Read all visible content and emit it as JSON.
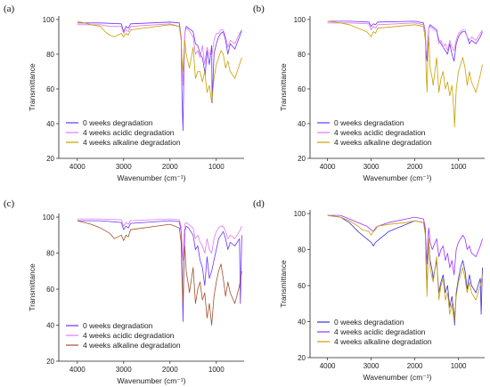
{
  "chart_data": [
    {
      "type": "line",
      "panel_label": "(a)",
      "xlabel": "Wavenumber (cm⁻¹)",
      "ylabel": "Transmittance",
      "xlim": [
        4400,
        400
      ],
      "ylim": [
        20,
        102
      ],
      "xticks": [
        4000,
        3000,
        2000,
        1000
      ],
      "yticks": [
        20,
        40,
        60,
        80,
        100
      ],
      "legend_position": "bottom-left",
      "series": [
        {
          "name": "0 weeks degradation",
          "color": "#6b33ff",
          "x": [
            4000,
            3500,
            3050,
            3000,
            2950,
            2900,
            2850,
            2000,
            1800,
            1760,
            1740,
            1720,
            1700,
            1680,
            1650,
            1600,
            1500,
            1450,
            1400,
            1350,
            1300,
            1250,
            1240,
            1200,
            1150,
            1100,
            1090,
            1050,
            1000,
            950,
            900,
            850,
            800,
            750,
            700,
            600,
            500,
            450
          ],
          "y": [
            98,
            98,
            97.5,
            93,
            96,
            95,
            97.5,
            98.5,
            98,
            90,
            55,
            36,
            70,
            92,
            96,
            95,
            93,
            86,
            85,
            80,
            78,
            70,
            68,
            82,
            74,
            85,
            52,
            80,
            86,
            90,
            92,
            93,
            88,
            80,
            86,
            83,
            90,
            94
          ]
        },
        {
          "name": "4 weeks acidic degradation",
          "color": "#e27ae8",
          "x": [
            4000,
            3500,
            3300,
            3050,
            3000,
            2950,
            2900,
            2850,
            2000,
            1800,
            1760,
            1740,
            1720,
            1700,
            1680,
            1650,
            1600,
            1500,
            1450,
            1400,
            1350,
            1300,
            1250,
            1200,
            1150,
            1100,
            1050,
            1000,
            950,
            900,
            850,
            800,
            750,
            700,
            600,
            500,
            450
          ],
          "y": [
            97,
            97,
            96,
            96,
            92,
            94,
            93,
            96,
            97.5,
            96,
            88,
            76,
            62,
            78,
            92,
            95,
            94,
            90,
            80,
            82,
            78,
            85,
            74,
            84,
            80,
            78,
            88,
            92,
            92,
            94,
            94,
            90,
            84,
            88,
            86,
            92,
            94
          ]
        },
        {
          "name": "4 weeks alkaline degradation",
          "color": "#c8a000",
          "x": [
            4000,
            3700,
            3500,
            3400,
            3300,
            3200,
            3050,
            3000,
            2950,
            2900,
            2850,
            2000,
            1800,
            1760,
            1740,
            1720,
            1700,
            1680,
            1650,
            1600,
            1580,
            1500,
            1450,
            1400,
            1350,
            1300,
            1250,
            1200,
            1150,
            1100,
            1050,
            1000,
            950,
            900,
            850,
            800,
            750,
            700,
            600,
            500,
            450
          ],
          "y": [
            99,
            97,
            96,
            93,
            91,
            90,
            92,
            90,
            92,
            91,
            94,
            97,
            96,
            90,
            76,
            70,
            80,
            88,
            80,
            74,
            72,
            84,
            66,
            70,
            70,
            64,
            70,
            58,
            62,
            52,
            66,
            74,
            78,
            82,
            80,
            72,
            76,
            70,
            66,
            74,
            78
          ]
        }
      ]
    },
    {
      "type": "line",
      "panel_label": "(b)",
      "xlabel": "Wavenumber (cm⁻¹)",
      "ylabel": "Transmittance",
      "xlim": [
        4400,
        400
      ],
      "ylim": [
        20,
        102
      ],
      "xticks": [
        4000,
        3000,
        2000,
        1000
      ],
      "yticks": [
        20,
        40,
        60,
        80,
        100
      ],
      "legend_position": "bottom-left",
      "series": [
        {
          "name": "0 weeks degradation",
          "color": "#6b33ff",
          "x": [
            4000,
            3500,
            3050,
            3000,
            2950,
            2900,
            2850,
            2000,
            1800,
            1760,
            1740,
            1720,
            1700,
            1680,
            1650,
            1600,
            1500,
            1450,
            1400,
            1350,
            1300,
            1250,
            1200,
            1150,
            1100,
            1050,
            1000,
            950,
            900,
            850,
            800,
            750,
            700,
            600,
            500,
            450
          ],
          "y": [
            99,
            99,
            98.5,
            96,
            97.5,
            97,
            98.5,
            99,
            98,
            93,
            80,
            76,
            88,
            95,
            97,
            96,
            94,
            88,
            86,
            84,
            82,
            80,
            86,
            80,
            76,
            86,
            90,
            92,
            93,
            93,
            90,
            86,
            88,
            86,
            90,
            93
          ]
        },
        {
          "name": "4 weeks acidic degradation",
          "color": "#e27ae8",
          "x": [
            4000,
            3500,
            3050,
            3000,
            2950,
            2900,
            2850,
            2000,
            1800,
            1760,
            1740,
            1720,
            1700,
            1680,
            1650,
            1600,
            1500,
            1450,
            1400,
            1350,
            1300,
            1250,
            1200,
            1150,
            1100,
            1050,
            1000,
            950,
            900,
            850,
            800,
            750,
            700,
            600,
            500,
            450
          ],
          "y": [
            98,
            98,
            97.5,
            94,
            96,
            95,
            97,
            98,
            97,
            92,
            82,
            80,
            90,
            95,
            96,
            95,
            93,
            86,
            88,
            84,
            86,
            82,
            88,
            84,
            82,
            88,
            92,
            93,
            94,
            94,
            90,
            88,
            90,
            88,
            92,
            94
          ]
        },
        {
          "name": "4 weeks alkaline degradation",
          "color": "#c8a000",
          "x": [
            4000,
            3700,
            3500,
            3300,
            3100,
            3000,
            2950,
            2900,
            2850,
            2000,
            1800,
            1760,
            1740,
            1720,
            1700,
            1680,
            1650,
            1600,
            1580,
            1500,
            1450,
            1400,
            1350,
            1300,
            1250,
            1200,
            1150,
            1100,
            1090,
            1050,
            1000,
            950,
            900,
            850,
            800,
            750,
            700,
            600,
            500,
            450
          ],
          "y": [
            99,
            98,
            97,
            95,
            93,
            90,
            93,
            92,
            95,
            97,
            96,
            88,
            70,
            58,
            80,
            90,
            72,
            66,
            62,
            78,
            58,
            66,
            70,
            60,
            64,
            56,
            62,
            46,
            38,
            60,
            70,
            74,
            78,
            72,
            62,
            70,
            64,
            58,
            68,
            74
          ]
        }
      ]
    },
    {
      "type": "line",
      "panel_label": "(c)",
      "xlabel": "Wavenumber (cm⁻¹)",
      "ylabel": "Transmittance",
      "xlim": [
        4400,
        400
      ],
      "ylim": [
        20,
        102
      ],
      "xticks": [
        4000,
        3000,
        2000,
        1000
      ],
      "yticks": [
        20,
        40,
        60,
        80,
        100
      ],
      "legend_position": "bottom-left",
      "series": [
        {
          "name": "0 weeks degradation",
          "color": "#6b33ff",
          "x": [
            4000,
            3500,
            3050,
            3000,
            2950,
            2900,
            2850,
            2000,
            1800,
            1760,
            1740,
            1720,
            1700,
            1680,
            1650,
            1600,
            1500,
            1450,
            1400,
            1350,
            1300,
            1250,
            1200,
            1150,
            1100,
            1050,
            1000,
            950,
            900,
            850,
            800,
            750,
            700,
            600,
            500,
            480,
            450
          ],
          "y": [
            98,
            98,
            97,
            93,
            95,
            94,
            96.5,
            98,
            97.5,
            92,
            74,
            42,
            72,
            92,
            95,
            94,
            90,
            82,
            84,
            76,
            72,
            62,
            78,
            66,
            70,
            76,
            82,
            88,
            90,
            92,
            88,
            82,
            86,
            84,
            88,
            52,
            90
          ]
        },
        {
          "name": "4 weeks acidic degradation",
          "color": "#e27ae8",
          "x": [
            4000,
            3500,
            3050,
            3000,
            2950,
            2900,
            2850,
            2000,
            1800,
            1760,
            1740,
            1720,
            1700,
            1680,
            1650,
            1600,
            1500,
            1450,
            1400,
            1350,
            1300,
            1250,
            1200,
            1150,
            1100,
            1050,
            1000,
            950,
            900,
            850,
            800,
            750,
            700,
            600,
            500,
            450
          ],
          "y": [
            99,
            99,
            98.5,
            95,
            97,
            96,
            98,
            99,
            98.5,
            95,
            86,
            76,
            88,
            96,
            97,
            96,
            94,
            88,
            90,
            86,
            84,
            80,
            88,
            82,
            80,
            88,
            92,
            94,
            95,
            95,
            92,
            88,
            90,
            88,
            92,
            95
          ]
        },
        {
          "name": "4 weeks alkaline degradation",
          "color": "#a0522d",
          "x": [
            4000,
            3700,
            3500,
            3300,
            3200,
            3050,
            3000,
            2950,
            2900,
            2850,
            2000,
            1800,
            1760,
            1740,
            1720,
            1700,
            1680,
            1650,
            1600,
            1580,
            1500,
            1450,
            1400,
            1350,
            1300,
            1250,
            1200,
            1150,
            1100,
            1050,
            1000,
            950,
            900,
            850,
            800,
            750,
            700,
            600,
            500,
            450
          ],
          "y": [
            98,
            96,
            94,
            91,
            88,
            90,
            87,
            90,
            89,
            93,
            96,
            94,
            86,
            66,
            52,
            74,
            84,
            70,
            62,
            58,
            72,
            52,
            60,
            64,
            54,
            58,
            44,
            52,
            40,
            56,
            64,
            70,
            74,
            66,
            56,
            64,
            58,
            52,
            62,
            70
          ]
        }
      ]
    },
    {
      "type": "line",
      "panel_label": "(d)",
      "xlabel": "Wavenumber (cm⁻¹)",
      "ylabel": "Transmittance",
      "xlim": [
        4400,
        400
      ],
      "ylim": [
        20,
        102
      ],
      "xticks": [
        4000,
        3000,
        2000,
        1000
      ],
      "yticks": [
        20,
        40,
        60,
        80,
        100
      ],
      "legend_position": "bottom-left",
      "series": [
        {
          "name": "0 weeks degradation",
          "color": "#3a2fd9",
          "x": [
            4000,
            3700,
            3500,
            3300,
            3100,
            3000,
            2950,
            2900,
            2850,
            2600,
            2200,
            2000,
            1800,
            1760,
            1740,
            1720,
            1700,
            1680,
            1650,
            1600,
            1580,
            1500,
            1450,
            1400,
            1350,
            1300,
            1250,
            1200,
            1150,
            1100,
            1090,
            1050,
            1000,
            950,
            900,
            850,
            800,
            750,
            700,
            600,
            500,
            480,
            450
          ],
          "y": [
            99,
            98,
            95,
            90,
            86,
            84,
            82,
            84,
            85,
            90,
            94,
            96,
            95,
            90,
            72,
            58,
            74,
            84,
            74,
            68,
            64,
            74,
            56,
            62,
            66,
            56,
            60,
            48,
            54,
            44,
            38,
            56,
            64,
            70,
            74,
            68,
            58,
            66,
            60,
            56,
            64,
            44,
            70
          ]
        },
        {
          "name": "4 weeks acidic degradation",
          "color": "#9b30ff",
          "x": [
            4000,
            3700,
            3500,
            3300,
            3100,
            3000,
            2950,
            2900,
            2850,
            2600,
            2200,
            2000,
            1800,
            1760,
            1740,
            1720,
            1700,
            1680,
            1650,
            1600,
            1500,
            1450,
            1400,
            1350,
            1300,
            1250,
            1200,
            1150,
            1100,
            1050,
            1000,
            950,
            900,
            850,
            800,
            750,
            700,
            600,
            500,
            450
          ],
          "y": [
            99,
            99,
            97,
            95,
            93,
            91,
            90,
            92,
            93,
            95,
            97,
            98,
            97,
            92,
            80,
            72,
            86,
            92,
            84,
            80,
            86,
            76,
            80,
            82,
            74,
            78,
            70,
            74,
            66,
            80,
            84,
            86,
            88,
            86,
            80,
            82,
            78,
            76,
            82,
            86
          ]
        },
        {
          "name": "4 weeks alkaline degradation",
          "color": "#c8a000",
          "x": [
            4000,
            3700,
            3500,
            3300,
            3200,
            3050,
            3000,
            2950,
            2900,
            2850,
            2600,
            2200,
            2000,
            1800,
            1760,
            1740,
            1720,
            1700,
            1680,
            1650,
            1600,
            1580,
            1500,
            1450,
            1400,
            1350,
            1300,
            1250,
            1200,
            1150,
            1100,
            1050,
            1000,
            950,
            900,
            850,
            800,
            750,
            700,
            600,
            500,
            450
          ],
          "y": [
            99,
            98,
            96,
            93,
            91,
            90,
            88,
            90,
            91,
            93,
            94,
            95,
            96,
            95,
            88,
            70,
            54,
            78,
            86,
            70,
            64,
            62,
            76,
            52,
            60,
            64,
            52,
            56,
            44,
            50,
            40,
            54,
            62,
            66,
            70,
            64,
            56,
            62,
            56,
            52,
            60,
            66
          ]
        }
      ]
    }
  ]
}
